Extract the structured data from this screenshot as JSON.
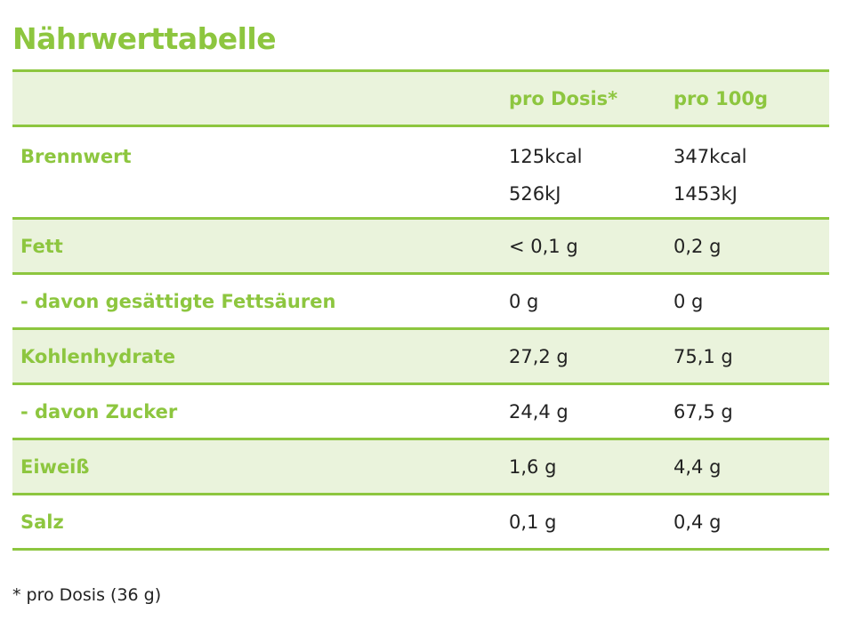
{
  "title": "Nährwerttabelle",
  "header": {
    "col_label": "",
    "col_per_dose": "pro Dosis*",
    "col_per_100g": "pro 100g"
  },
  "rows": [
    {
      "label": "Brennwert",
      "per_dose": [
        "125kcal",
        "526kJ"
      ],
      "per_100g": [
        "347kcal",
        "1453kJ"
      ]
    },
    {
      "label": "Fett",
      "per_dose": "< 0,1 g",
      "per_100g": "0,2 g"
    },
    {
      "label": "- davon gesättigte Fettsäuren",
      "per_dose": "0 g",
      "per_100g": "0 g"
    },
    {
      "label": "Kohlenhydrate",
      "per_dose": "27,2 g",
      "per_100g": "75,1 g"
    },
    {
      "label": "- davon Zucker",
      "per_dose": "24,4 g",
      "per_100g": "67,5 g"
    },
    {
      "label": "Eiweiß",
      "per_dose": "1,6 g",
      "per_100g": "4,4 g"
    },
    {
      "label": "Salz",
      "per_dose": "0,1 g",
      "per_100g": "0,4 g"
    }
  ],
  "footnote": "* pro Dosis (36 g)",
  "colors": {
    "accent": "#8dc63f",
    "shade": "#eaf3dc",
    "text": "#222222"
  }
}
